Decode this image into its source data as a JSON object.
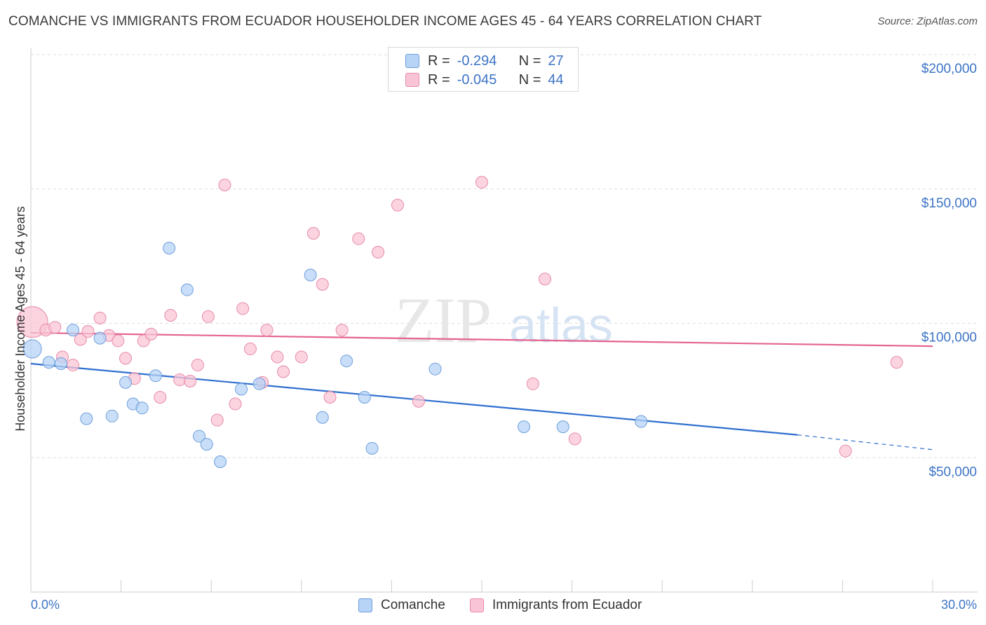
{
  "title": "COMANCHE VS IMMIGRANTS FROM ECUADOR HOUSEHOLDER INCOME AGES 45 - 64 YEARS CORRELATION CHART",
  "source": "Source: ZipAtlas.com",
  "watermark": {
    "zip": "ZIP",
    "atlas": "atlas"
  },
  "legend": {
    "rows": [
      {
        "r_label": "R =",
        "r_value": "-0.294",
        "n_label": "N =",
        "n_value": "27"
      },
      {
        "r_label": "R =",
        "r_value": "-0.045",
        "n_label": "N =",
        "n_value": "44"
      }
    ]
  },
  "colors": {
    "comanche_fill": "#b7d3f5",
    "comanche_stroke": "#6e9fdc",
    "comanche_line": "#2f6fcf",
    "ecuador_fill": "#f9c5d6",
    "ecuador_stroke": "#e78aaa",
    "ecuador_line": "#e4638f",
    "tick_text": "#3d74c6",
    "grid": "#dddddd"
  },
  "chart_data": {
    "type": "scatter",
    "title": "COMANCHE VS IMMIGRANTS FROM ECUADOR HOUSEHOLDER INCOME AGES 45 - 64 YEARS CORRELATION CHART",
    "xlabel": "",
    "ylabel": "Householder Income Ages 45 - 64 years",
    "xlim": [
      0,
      30
    ],
    "ylim": [
      0,
      205000
    ],
    "x_tick_labels": [
      "0.0%",
      "30.0%"
    ],
    "y_ticks": [
      50000,
      100000,
      150000,
      200000
    ],
    "y_tick_labels": [
      "$50,000",
      "$100,000",
      "$150,000",
      "$200,000"
    ],
    "grid": true,
    "legend_position": "bottom",
    "series": [
      {
        "name": "Comanche",
        "r": -0.294,
        "n": 27,
        "trend": {
          "x": [
            0,
            25.5
          ],
          "y": [
            85000,
            58500
          ],
          "dashed_to": [
            30,
            53000
          ]
        },
        "points": [
          {
            "x": 0.05,
            "y": 90500,
            "big": true
          },
          {
            "x": 0.6,
            "y": 85500
          },
          {
            "x": 1.0,
            "y": 85000
          },
          {
            "x": 1.4,
            "y": 97500
          },
          {
            "x": 1.85,
            "y": 64500
          },
          {
            "x": 2.3,
            "y": 94500
          },
          {
            "x": 2.7,
            "y": 65500
          },
          {
            "x": 3.15,
            "y": 78000
          },
          {
            "x": 3.4,
            "y": 70000
          },
          {
            "x": 3.7,
            "y": 68500
          },
          {
            "x": 4.15,
            "y": 80500
          },
          {
            "x": 4.6,
            "y": 128000
          },
          {
            "x": 5.2,
            "y": 112500
          },
          {
            "x": 5.6,
            "y": 58000
          },
          {
            "x": 5.85,
            "y": 55000
          },
          {
            "x": 6.3,
            "y": 48500
          },
          {
            "x": 7.0,
            "y": 75500
          },
          {
            "x": 7.6,
            "y": 77500
          },
          {
            "x": 9.3,
            "y": 118000
          },
          {
            "x": 9.7,
            "y": 65000
          },
          {
            "x": 10.5,
            "y": 86000
          },
          {
            "x": 11.1,
            "y": 72500
          },
          {
            "x": 11.35,
            "y": 53500
          },
          {
            "x": 13.45,
            "y": 83000
          },
          {
            "x": 16.4,
            "y": 61500
          },
          {
            "x": 17.7,
            "y": 61500
          },
          {
            "x": 20.3,
            "y": 63500
          }
        ]
      },
      {
        "name": "Immigrants from Ecuador",
        "r": -0.045,
        "n": 44,
        "trend": {
          "x": [
            0,
            30
          ],
          "y": [
            96500,
            91500
          ]
        },
        "points": [
          {
            "x": 0.05,
            "y": 100500,
            "big": true
          },
          {
            "x": 0.5,
            "y": 97500
          },
          {
            "x": 0.8,
            "y": 98500
          },
          {
            "x": 1.05,
            "y": 87500
          },
          {
            "x": 1.4,
            "y": 84500
          },
          {
            "x": 1.65,
            "y": 94000
          },
          {
            "x": 1.9,
            "y": 97000
          },
          {
            "x": 2.3,
            "y": 102000
          },
          {
            "x": 2.6,
            "y": 95500
          },
          {
            "x": 2.9,
            "y": 93500
          },
          {
            "x": 3.15,
            "y": 87000
          },
          {
            "x": 3.45,
            "y": 79500
          },
          {
            "x": 3.75,
            "y": 93500
          },
          {
            "x": 4.0,
            "y": 96000
          },
          {
            "x": 4.3,
            "y": 72500
          },
          {
            "x": 4.65,
            "y": 103000
          },
          {
            "x": 4.95,
            "y": 79000
          },
          {
            "x": 5.3,
            "y": 78500
          },
          {
            "x": 5.55,
            "y": 84500
          },
          {
            "x": 5.9,
            "y": 102500
          },
          {
            "x": 6.2,
            "y": 64000
          },
          {
            "x": 6.45,
            "y": 151500
          },
          {
            "x": 6.8,
            "y": 70000
          },
          {
            "x": 7.05,
            "y": 105500
          },
          {
            "x": 7.3,
            "y": 90500
          },
          {
            "x": 7.7,
            "y": 78000
          },
          {
            "x": 7.85,
            "y": 97500
          },
          {
            "x": 8.2,
            "y": 87500
          },
          {
            "x": 8.4,
            "y": 82000
          },
          {
            "x": 9.0,
            "y": 87500
          },
          {
            "x": 9.4,
            "y": 133500
          },
          {
            "x": 9.7,
            "y": 114500
          },
          {
            "x": 9.95,
            "y": 72500
          },
          {
            "x": 10.35,
            "y": 97500
          },
          {
            "x": 10.9,
            "y": 131500
          },
          {
            "x": 11.55,
            "y": 126500
          },
          {
            "x": 12.2,
            "y": 144000
          },
          {
            "x": 12.9,
            "y": 71000
          },
          {
            "x": 15.0,
            "y": 152500
          },
          {
            "x": 16.7,
            "y": 77500
          },
          {
            "x": 17.1,
            "y": 116500
          },
          {
            "x": 18.1,
            "y": 57000
          },
          {
            "x": 27.1,
            "y": 52500
          },
          {
            "x": 28.8,
            "y": 85500
          }
        ]
      }
    ]
  }
}
